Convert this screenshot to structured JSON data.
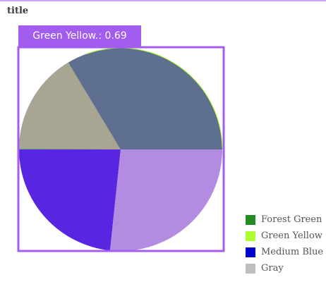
{
  "chart_data": {
    "type": "pie",
    "title": "title",
    "slices": [
      {
        "label": "Forest Green",
        "value": 0.2,
        "display_color": "#5f6f8f",
        "legend_color": "#228b22"
      },
      {
        "label": "Green Yellow",
        "value": 0.69,
        "display_color": "#7aa37a",
        "legend_color": "#adff2f"
      },
      {
        "label": "Medium Blue",
        "value": 0.17,
        "display_color": "#a9a593",
        "legend_color": "#0000cd"
      },
      {
        "label": "Gray",
        "value": 0.25,
        "display_color": "#5825e0",
        "legend_color": "#bebebe"
      },
      {
        "label": "",
        "value": 0.25,
        "display_color": "#b38be0",
        "legend_color": ""
      }
    ],
    "legend_placement": "bottom-right",
    "highlight": {
      "label": "Green Yellow.",
      "value": "0.69",
      "text": "Green Yellow.: 0.69",
      "color": "#a35cf0"
    }
  }
}
